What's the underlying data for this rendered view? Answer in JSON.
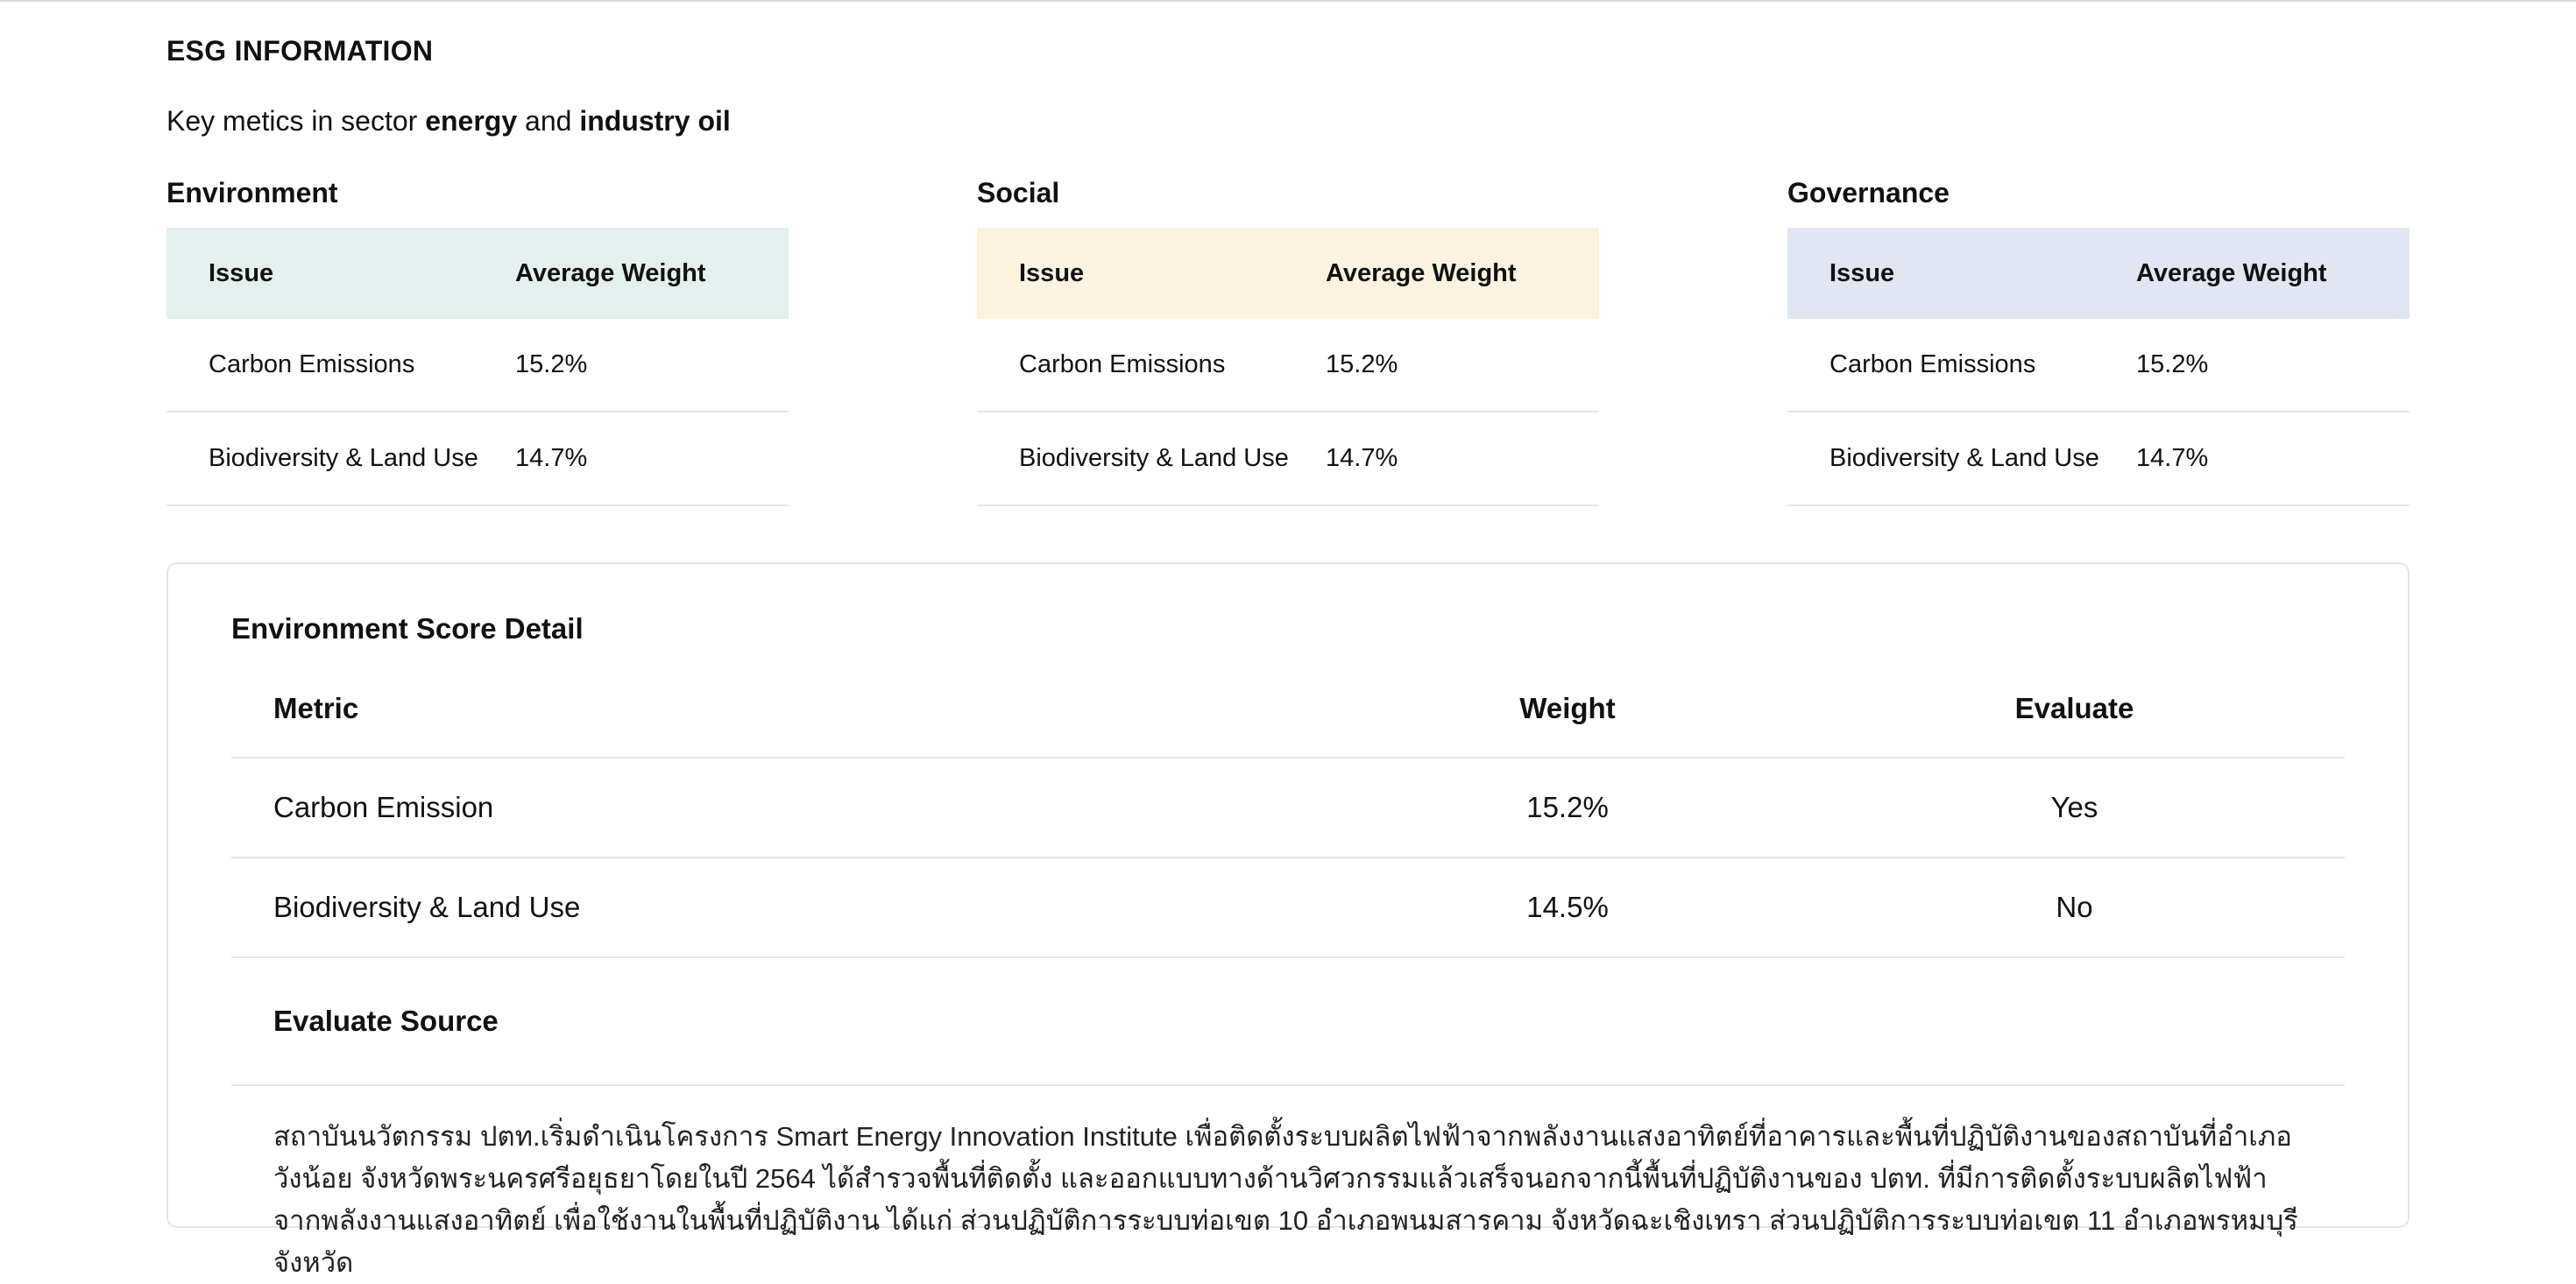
{
  "header": {
    "title": "ESG INFORMATION",
    "subtitle_prefix": "Key metics in sector ",
    "sector": "energy",
    "subtitle_and": " and ",
    "industry": "industry oil"
  },
  "pillars": [
    {
      "title": "Environment",
      "head_color": "#e3f0ee",
      "col_issue": "Issue",
      "col_weight": "Average Weight",
      "rows": [
        {
          "issue": "Carbon Emissions",
          "weight": "15.2%"
        },
        {
          "issue": "Biodiversity & Land Use",
          "weight": "14.7%"
        }
      ]
    },
    {
      "title": "Social",
      "head_color": "#fbf3e0",
      "col_issue": "Issue",
      "col_weight": "Average Weight",
      "rows": [
        {
          "issue": "Carbon Emissions",
          "weight": "15.2%"
        },
        {
          "issue": "Biodiversity & Land Use",
          "weight": "14.7%"
        }
      ]
    },
    {
      "title": "Governance",
      "head_color": "#e2e6f3",
      "col_issue": "Issue",
      "col_weight": "Average Weight",
      "rows": [
        {
          "issue": "Carbon Emissions",
          "weight": "15.2%"
        },
        {
          "issue": "Biodiversity & Land Use",
          "weight": "14.7%"
        }
      ]
    }
  ],
  "detail": {
    "title": "Environment Score Detail",
    "columns": {
      "metric": "Metric",
      "weight": "Weight",
      "evaluate": "Evaluate"
    },
    "rows": [
      {
        "metric": "Carbon Emission",
        "weight": "15.2%",
        "evaluate": "Yes"
      },
      {
        "metric": "Biodiversity & Land Use",
        "weight": "14.5%",
        "evaluate": "No"
      }
    ],
    "source_title": "Evaluate Source",
    "source_text": "สถาบันนวัตกรรม ปตท.เริ่มดำเนินโครงการ Smart Energy Innovation Institute เพื่อติดตั้งระบบผลิตไฟฟ้าจากพลังงานแสงอาทิตย์ที่อาคารและพื้นที่ปฏิบัติงานของสถาบันที่อำเภอวังน้อย จังหวัดพระนครศรีอยุธยาโดยในปี 2564 ได้สำรวจพื้นที่ติดตั้ง และออกแบบทางด้านวิศวกรรมแล้วเสร็จนอกจากนี้พื้นที่ปฏิบัติงานของ ปตท. ที่มีการติดตั้งระบบผลิตไฟฟ้าจากพลังงานแสงอาทิตย์ เพื่อใช้งานในพื้นที่ปฏิบัติงาน ได้แก่ ส่วนปฏิบัติการระบบท่อเขต 10 อำเภอพนมสารคาม จังหวัดฉะเชิงเทรา ส่วนปฏิบัติการระบบท่อเขต 11 อำเภอพรหมบุรี จังหวัด"
  }
}
